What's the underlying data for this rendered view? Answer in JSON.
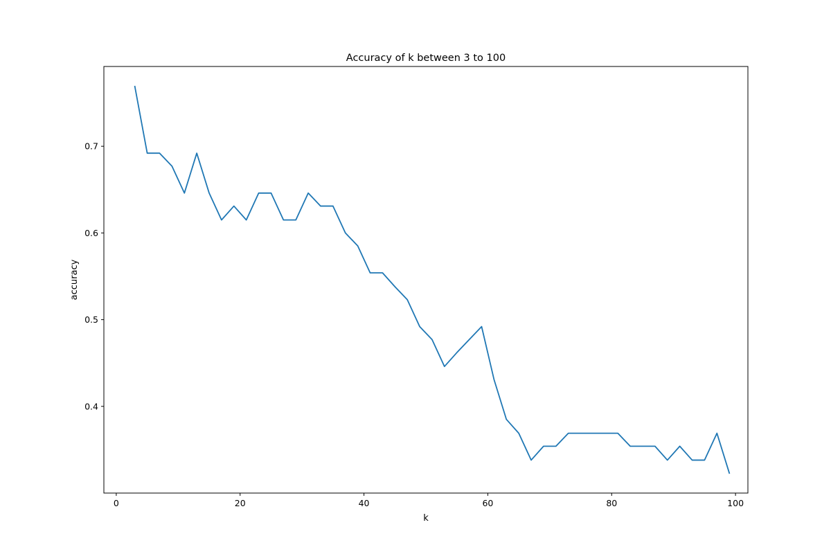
{
  "chart_data": {
    "type": "line",
    "title": "Accuracy of k between 3 to 100",
    "xlabel": "k",
    "ylabel": "accuracy",
    "xlim": [
      -2,
      102
    ],
    "ylim": [
      0.3,
      0.792
    ],
    "grid": false,
    "x_ticks": [
      0,
      20,
      40,
      60,
      80,
      100
    ],
    "x_tick_labels": [
      "0",
      "20",
      "40",
      "60",
      "80",
      "100"
    ],
    "y_ticks": [
      0.4,
      0.5,
      0.6,
      0.7
    ],
    "y_tick_labels": [
      "0.4",
      "0.5",
      "0.6",
      "0.7"
    ],
    "series": [
      {
        "color": "#1f77b4",
        "x": [
          3,
          5,
          7,
          9,
          11,
          13,
          15,
          17,
          19,
          21,
          23,
          25,
          27,
          29,
          31,
          33,
          35,
          37,
          39,
          41,
          43,
          45,
          47,
          49,
          51,
          53,
          55,
          57,
          59,
          61,
          63,
          65,
          67,
          69,
          71,
          73,
          75,
          77,
          79,
          81,
          83,
          85,
          87,
          89,
          91,
          93,
          95,
          97,
          99
        ],
        "values": [
          0.769,
          0.692,
          0.692,
          0.677,
          0.646,
          0.692,
          0.646,
          0.615,
          0.631,
          0.615,
          0.646,
          0.646,
          0.615,
          0.615,
          0.646,
          0.631,
          0.631,
          0.6,
          0.585,
          0.554,
          0.554,
          0.538,
          0.523,
          0.492,
          0.477,
          0.446,
          0.462,
          0.477,
          0.492,
          0.431,
          0.385,
          0.369,
          0.338,
          0.354,
          0.354,
          0.369,
          0.369,
          0.369,
          0.369,
          0.369,
          0.354,
          0.354,
          0.354,
          0.338,
          0.354,
          0.338,
          0.338,
          0.369,
          0.323
        ]
      }
    ]
  }
}
